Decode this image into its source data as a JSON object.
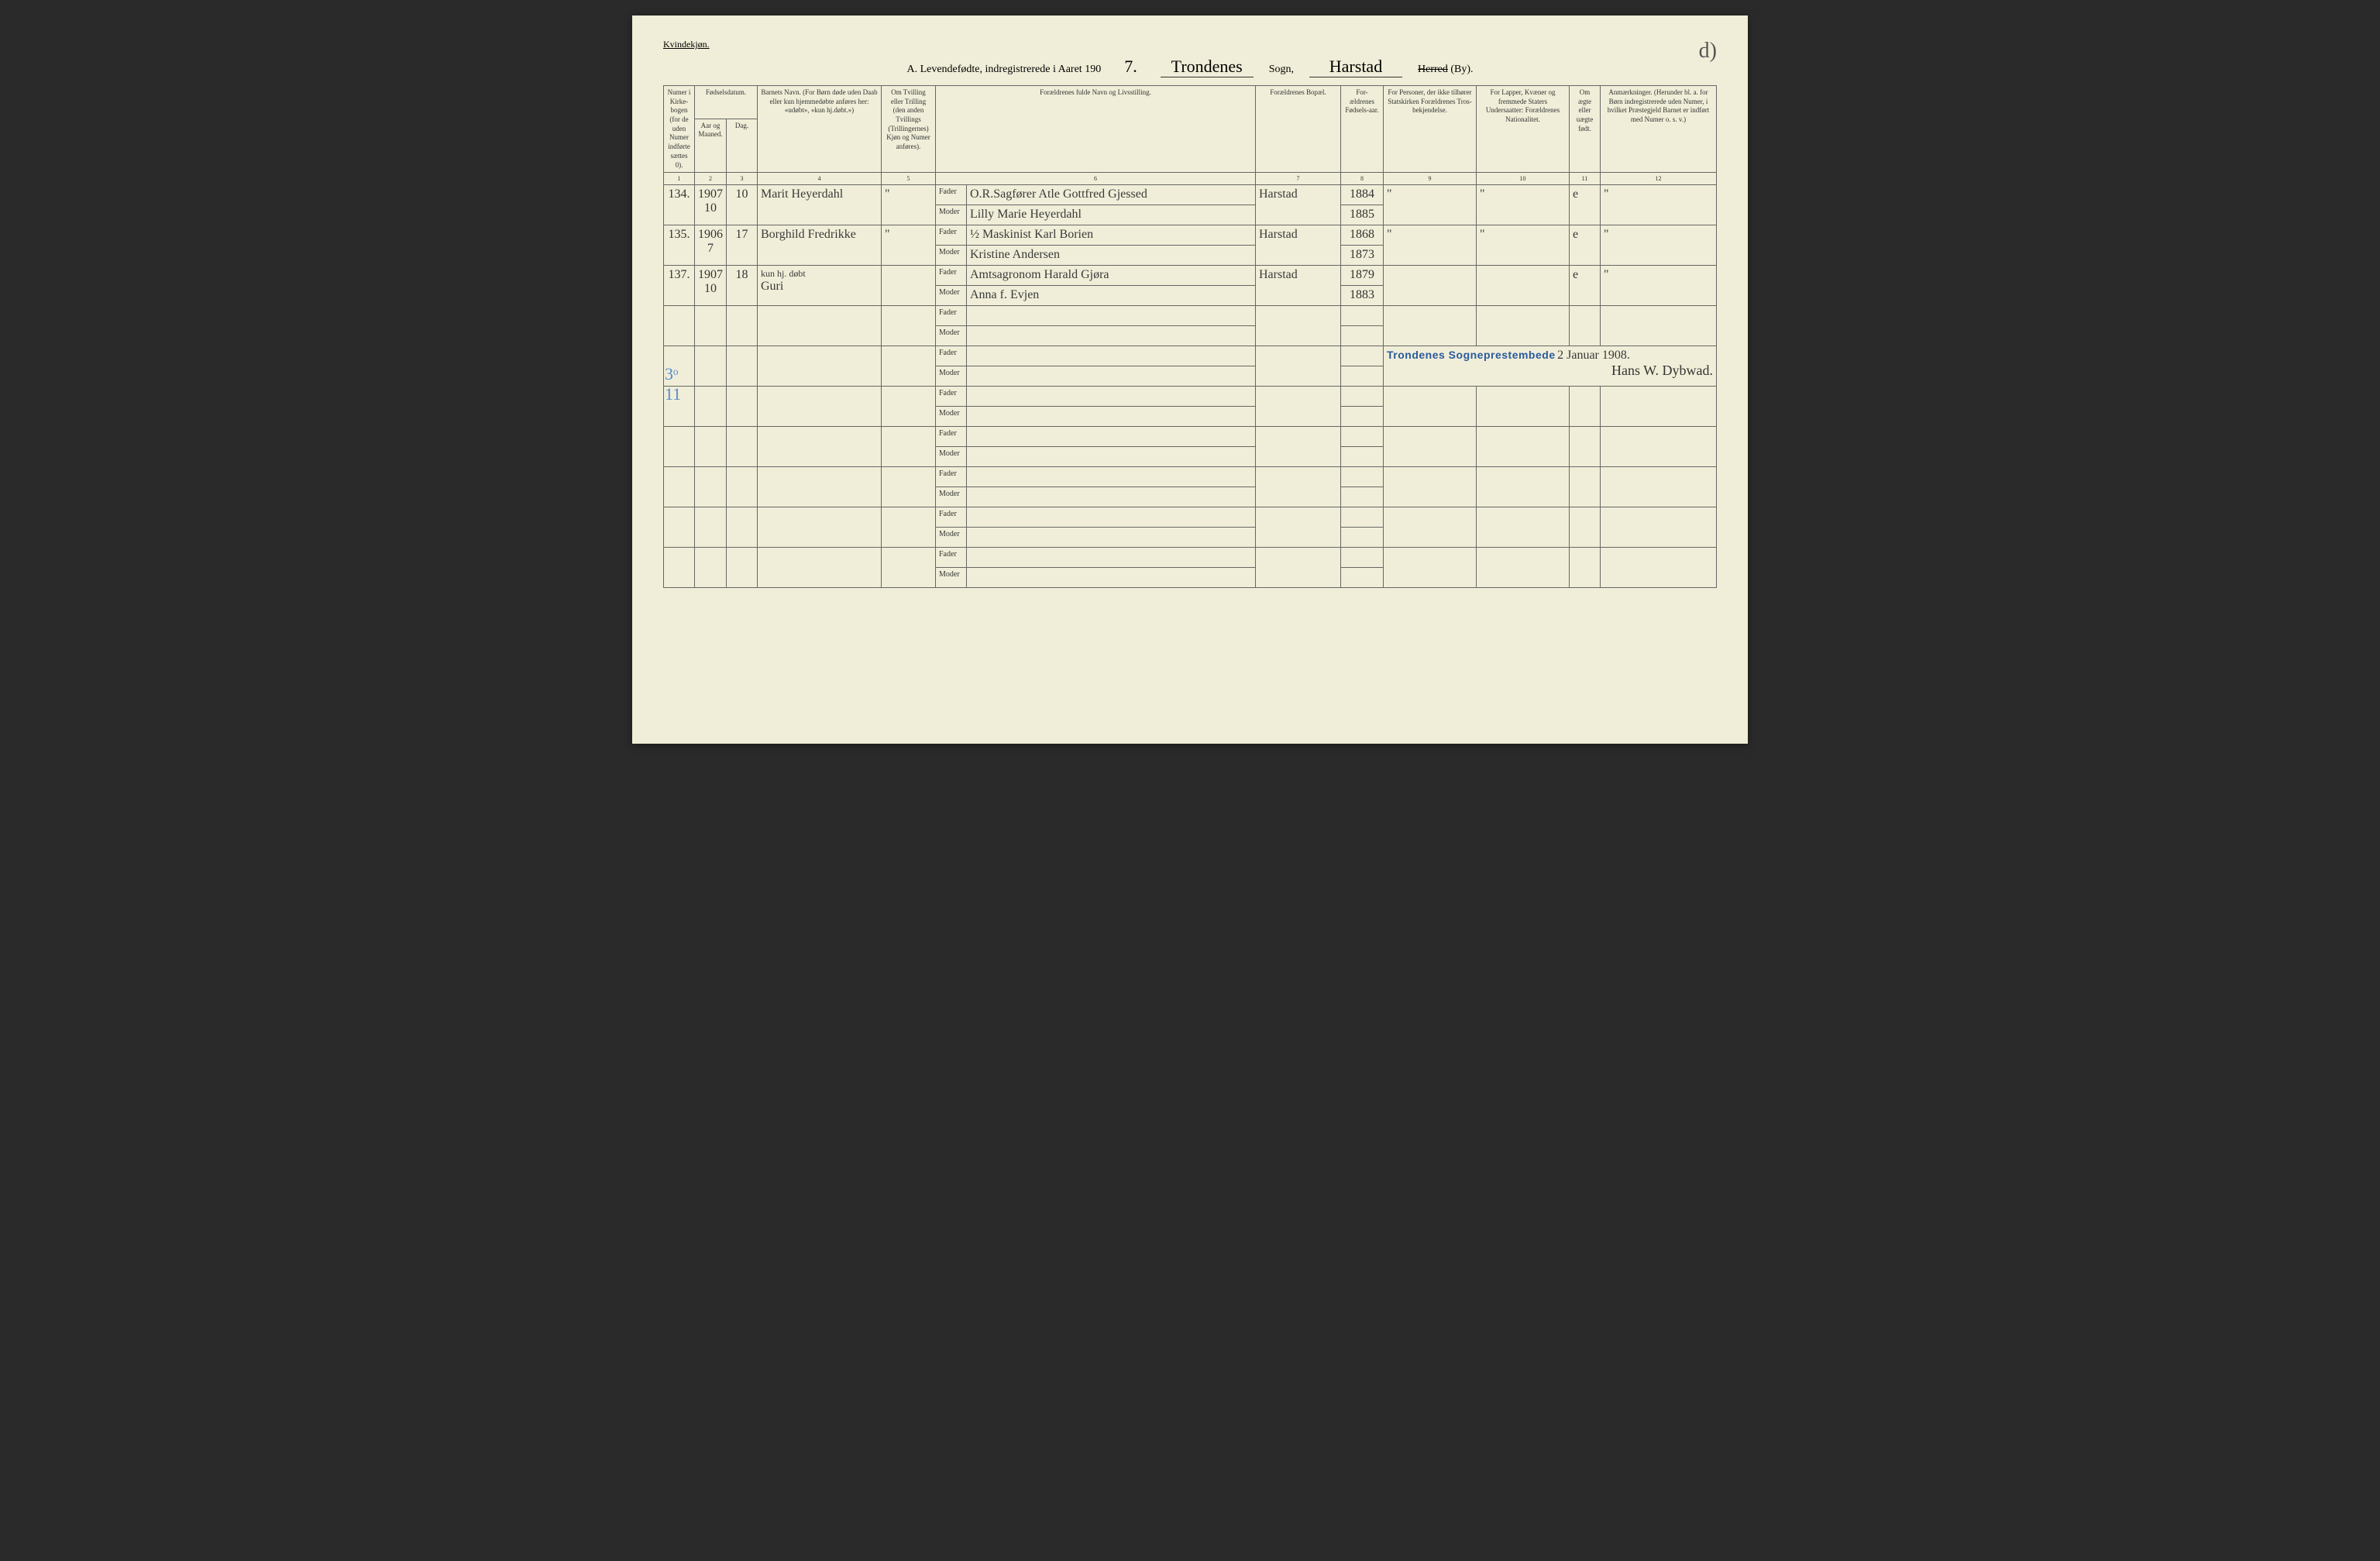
{
  "gender_label": "Kvindekjøn.",
  "title": {
    "prefix": "A.  Levendefødte, indregistrerede i Aaret 190",
    "year_digit": "7.",
    "parish_hand": "Trondenes",
    "sogn": "Sogn,",
    "district_hand": "Harstad",
    "herred_crossed": "Herred",
    "by": "(By)."
  },
  "corner_mark": "d)",
  "margin_mark": "3ᵒ\n11",
  "headers": {
    "c1": "Numer i Kirke-bogen (for de uden Numer indførte sættes 0).",
    "c2a": "Fødselsdatum.",
    "c2": "Aar og Maaned.",
    "c3": "Dag.",
    "c4": "Barnets Navn. (For Børn døde uden Daab eller kun hjemmedøbte anføres her: «udøbt», «kun hj.døbt.»)",
    "c5": "Om Tvilling eller Trilling (den anden Tvillings (Trillingernes) Kjøn og Numer anføres).",
    "c6": "Forældrenes fulde Navn og Livsstilling.",
    "c7": "Forældrenes Bopæl.",
    "c8": "For-ældrenes Fødsels-aar.",
    "c9": "For Personer, der ikke tilhører Statskirken Forældrenes Tros-bekjendelse.",
    "c10": "For Lapper, Kvæner og fremmede Staters Undersaatter: Forældrenes Nationalitet.",
    "c11": "Om ægte eller uægte født.",
    "c12": "Anmærkninger. (Herunder bl. a. for Børn indregistrerede uden Numer, i hvilket Præstegjeld Barnet er indført med Numer o. s. v.)"
  },
  "colnums": [
    "1",
    "2",
    "3",
    "4",
    "5",
    "6",
    "7",
    "8",
    "9",
    "10",
    "11",
    "12"
  ],
  "fm": {
    "f": "Fader",
    "m": "Moder"
  },
  "entries": [
    {
      "num": "134.",
      "year_month": "1907\n10",
      "day": "10",
      "child": "Marit Heyerdahl",
      "twin": "\"",
      "father": "O.R.Sagfører Atle Gottfred Gjessed",
      "mother": "Lilly Marie Heyerdahl",
      "residence": "Harstad",
      "father_year": "1884",
      "mother_year": "1885",
      "c9": "\"",
      "c10": "\"",
      "legit": "e",
      "notes": "\""
    },
    {
      "num": "135.",
      "year_month": "1906\n7",
      "day": "17",
      "child": "Borghild Fredrikke",
      "twin": "\"",
      "father": "½ Maskinist Karl Borien",
      "mother": "Kristine Andersen",
      "residence": "Harstad",
      "father_year": "1868",
      "mother_year": "1873",
      "c9": "\"",
      "c10": "\"",
      "legit": "e",
      "notes": "\""
    },
    {
      "num": "137.",
      "year_month": "1907\n10",
      "day": "18",
      "child_note": "kun hj. døbt",
      "child": "Guri",
      "twin": "",
      "father": "Amtsagronom Harald Gjøra",
      "mother": "Anna f. Evjen",
      "residence": "Harstad",
      "father_year": "1879",
      "mother_year": "1883",
      "c9": "",
      "c10": "",
      "legit": "e",
      "notes": "\""
    }
  ],
  "stamp": "Trondenes Sogneprestembede",
  "stamp_date": "2 Januar 1908.",
  "signature": "Hans W. Dybwad."
}
